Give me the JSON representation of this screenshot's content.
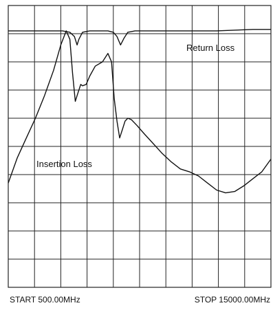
{
  "footer": {
    "start": "START 500.00MHz",
    "stop": "STOP 15000.00MHz"
  },
  "annotations": {
    "return_loss": "Return Loss",
    "insertion_loss": "Insertion Loss"
  },
  "chart_data": {
    "type": "line",
    "title": "",
    "xlabel": "",
    "ylabel": "",
    "x_unit": "MHz",
    "xlim": [
      500,
      15000
    ],
    "ylim": [
      0,
      10
    ],
    "x_divisions": 10,
    "y_divisions": 10,
    "grid": true,
    "colors": {
      "trace": "#111111",
      "grid": "#222222",
      "background": "#ffffff"
    },
    "series": [
      {
        "name": "Return Loss",
        "x": [
          500,
          2000,
          3500,
          3900,
          4150,
          4300,
          4400,
          4600,
          5000,
          5500,
          6000,
          6300,
          6500,
          6700,
          6900,
          7100,
          7500,
          8500,
          10000,
          12000,
          14000,
          15000
        ],
        "y": [
          9.1,
          9.1,
          9.1,
          9.05,
          8.9,
          8.6,
          8.8,
          9.05,
          9.1,
          9.1,
          9.1,
          9.05,
          8.9,
          8.6,
          8.85,
          9.05,
          9.1,
          9.1,
          9.1,
          9.1,
          9.15,
          9.15
        ]
      },
      {
        "name": "Insertion Loss",
        "x": [
          500,
          1000,
          1500,
          2000,
          2500,
          3000,
          3400,
          3700,
          3900,
          4050,
          4200,
          4350,
          4500,
          4600,
          4800,
          5000,
          5300,
          5700,
          6000,
          6200,
          6350,
          6500,
          6650,
          6800,
          6950,
          7100,
          7300,
          7600,
          8000,
          8500,
          9000,
          9500,
          10000,
          10500,
          11000,
          11500,
          12000,
          12500,
          13000,
          13500,
          14000,
          14500,
          15000
        ],
        "y": [
          3.7,
          4.6,
          5.3,
          6.0,
          6.8,
          7.7,
          8.6,
          9.1,
          8.8,
          7.6,
          6.6,
          6.9,
          7.2,
          7.15,
          7.2,
          7.5,
          7.85,
          8.0,
          8.3,
          8.0,
          6.7,
          5.9,
          5.3,
          5.6,
          5.9,
          6.0,
          5.95,
          5.75,
          5.45,
          5.1,
          4.75,
          4.45,
          4.2,
          4.1,
          3.95,
          3.7,
          3.45,
          3.35,
          3.4,
          3.6,
          3.85,
          4.1,
          4.55
        ]
      }
    ]
  }
}
